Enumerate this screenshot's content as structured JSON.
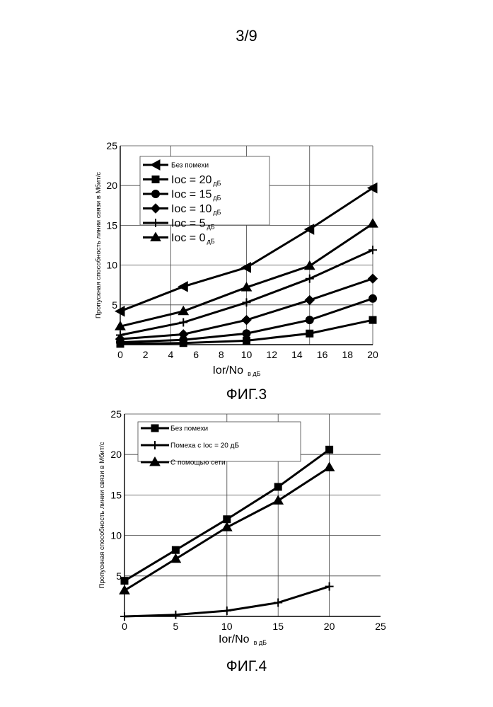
{
  "page": {
    "number": "3/9"
  },
  "figures": [
    {
      "caption": "ФИГ.3"
    },
    {
      "caption": "ФИГ.4"
    }
  ],
  "chart_data": [
    {
      "type": "line",
      "xlabel": "Ior/No",
      "xlabel_unit": "в дБ",
      "ylabel": "Пропускная способность линии связи в Мбит/с",
      "xlim": [
        0,
        20
      ],
      "ylim": [
        0,
        25
      ],
      "xticks": [
        0,
        2,
        4,
        6,
        8,
        10,
        12,
        14,
        16,
        18,
        20
      ],
      "yticks": [
        5,
        10,
        15,
        20,
        25
      ],
      "grid": true,
      "legend_position": "top-left",
      "series": [
        {
          "name": "Без помехи",
          "marker": "triangle-left",
          "x": [
            0,
            5,
            10,
            15,
            20
          ],
          "y": [
            4.2,
            7.3,
            9.7,
            14.5,
            19.7
          ]
        },
        {
          "name": "Ioc = 20",
          "unit": "дБ",
          "marker": "square",
          "x": [
            0,
            5,
            10,
            15,
            20
          ],
          "y": [
            0.1,
            0.2,
            0.5,
            1.4,
            3.1
          ]
        },
        {
          "name": "Ioc = 15",
          "unit": "дБ",
          "marker": "circle",
          "x": [
            0,
            5,
            10,
            15,
            20
          ],
          "y": [
            0.3,
            0.6,
            1.4,
            3.1,
            5.8
          ]
        },
        {
          "name": "Ioc = 10",
          "unit": "дБ",
          "marker": "diamond",
          "x": [
            0,
            5,
            10,
            15,
            20
          ],
          "y": [
            0.7,
            1.3,
            3.1,
            5.6,
            8.3
          ]
        },
        {
          "name": "Ioc = 5",
          "unit": "дБ",
          "marker": "plus",
          "x": [
            0,
            5,
            10,
            15,
            20
          ],
          "y": [
            1.2,
            2.8,
            5.3,
            8.3,
            11.9
          ]
        },
        {
          "name": "Ioc = 0",
          "unit": "дБ",
          "marker": "triangle-up",
          "x": [
            0,
            5,
            10,
            15,
            20
          ],
          "y": [
            2.3,
            4.2,
            7.2,
            9.9,
            15.2
          ]
        }
      ]
    },
    {
      "type": "line",
      "xlabel": "Ior/No",
      "xlabel_unit": "в дБ",
      "ylabel": "Пропускная способность линии связи в Мбит/с",
      "xlim": [
        0,
        25
      ],
      "ylim": [
        0,
        25
      ],
      "xticks": [
        0,
        5,
        10,
        15,
        20,
        25
      ],
      "yticks": [
        5,
        10,
        15,
        20,
        25
      ],
      "grid": true,
      "legend_position": "top-left",
      "series": [
        {
          "name": "Без помехи",
          "marker": "square",
          "x": [
            0,
            5,
            10,
            15,
            20
          ],
          "y": [
            4.4,
            8.2,
            12.0,
            16.0,
            20.6
          ]
        },
        {
          "name": "Помеха с Ioc = 20 дБ",
          "marker": "plus",
          "x": [
            0,
            5,
            10,
            15,
            20
          ],
          "y": [
            0.0,
            0.2,
            0.7,
            1.7,
            3.7
          ]
        },
        {
          "name": "С помощью сети",
          "marker": "triangle-up",
          "x": [
            0,
            5,
            10,
            15,
            20
          ],
          "y": [
            3.2,
            7.1,
            11.0,
            14.3,
            18.4
          ]
        }
      ]
    }
  ]
}
